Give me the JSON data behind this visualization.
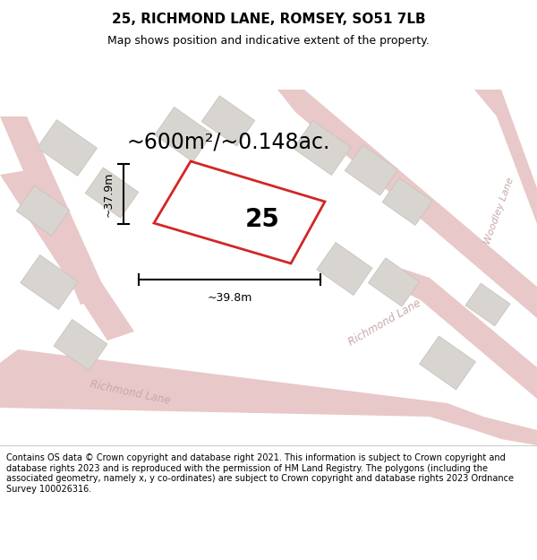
{
  "title": "25, RICHMOND LANE, ROMSEY, SO51 7LB",
  "subtitle": "Map shows position and indicative extent of the property.",
  "area_label": "~600m²/~0.148ac.",
  "plot_number": "25",
  "dim_height": "~37.9m",
  "dim_width": "~39.8m",
  "footer": "Contains OS data © Crown copyright and database right 2021. This information is subject to Crown copyright and database rights 2023 and is reproduced with the permission of HM Land Registry. The polygons (including the associated geometry, namely x, y co-ordinates) are subject to Crown copyright and database rights 2023 Ordnance Survey 100026316.",
  "bg_color": "#f2eeea",
  "road_fill": "#e8c8c8",
  "road_edge": "none",
  "building_fill": "#d8d4d0",
  "building_edge": "#c8c4c0",
  "plot_border_color": "#cc0000",
  "road_label_color": "#c8a8a8",
  "title_fontsize": 11,
  "subtitle_fontsize": 9,
  "area_fontsize": 17,
  "plot_num_fontsize": 20,
  "dim_fontsize": 9,
  "road_label_fontsize": 8.5,
  "footer_fontsize": 7
}
